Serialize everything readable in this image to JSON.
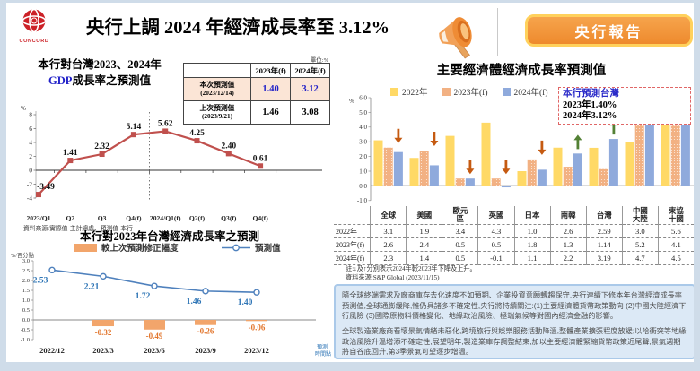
{
  "header": {
    "logo_text": "CONCORD",
    "title": "央行上調 2024 年經濟成長率至 3.12%",
    "badge_label": "央行報告",
    "badge_color": "#EE8A2D",
    "badge_border_color": "#FFD15C"
  },
  "gdp_panel": {
    "title_line1": "本行對台灣2023、2024年",
    "title_gdp": "GDP",
    "title_rest": "成長率之預測值",
    "unit_label": "單位:%",
    "table": {
      "col_headers": [
        "2023年(f)",
        "2024年(f)"
      ],
      "rows": [
        {
          "label": "本次預測值",
          "date": "(2023/12/14)",
          "v2023": "1.40",
          "v2024": "3.12"
        },
        {
          "label": "上次預測值",
          "date": "(2023/9/21)",
          "v2023": "1.46",
          "v2024": "3.08"
        }
      ]
    },
    "source": "資料來源:實際值-主計總處、預測值-本行"
  },
  "revision_panel": {
    "title": "本行對2023年台灣經濟成長率之預測"
  },
  "economies_panel": {
    "title": "主要經濟體經濟成長率預測值",
    "callout_line1": "本行預測台灣",
    "callout_line2": "2023年1.40%",
    "callout_line3": "2024年3.12%",
    "note": "註:↓及↑分別表示2024年較2023年下降及上升。",
    "source": "資料來源:S&P Global (2023/11/15)"
  },
  "summary_box": {
    "paragraph1": "隨全球終端需求及廠商庫存去化速度不如預期、企業投資意願轉趨保守,央行連續下修本年台灣經濟成長率預測值,全球通膨緩降,惟仍具諸多不確定性,央行將持續關注:(1)主要經濟體貨幣政策動向 (2)中國大陸經濟下行風險 (3)國際原物料價格變化、地緣政治風險、極端氣候等對國內經濟金融的影響。",
    "paragraph2": "全球製造業廠商看壞景氣情緒未惡化,跨境旅行與娛樂服務活動降溫,整體產業擴張程度放緩;以哈衝突等地緣政治風險升溫增添不確定性,展望明年,製造業庫存調整結束,加以主要經濟體緊縮貨幣政策近尾聲,景氣週期將自谷底回升,第3季景氣可望逐步增溫。"
  },
  "chart_data": [
    {
      "id": "gdp_line",
      "type": "line",
      "title": "本行對台灣2023、2024年GDP成長率之預測值",
      "ylabel": "%",
      "ylim": [
        -4,
        8
      ],
      "yticks": [
        8,
        6,
        4,
        2,
        0,
        -2,
        -4
      ],
      "categories": [
        "2023/Q1",
        "Q2",
        "Q3",
        "Q4(f)",
        "2024/Q1(f)",
        "Q2(f)",
        "Q3(f)",
        "Q4(f)"
      ],
      "values": [
        -3.49,
        1.41,
        2.32,
        5.14,
        5.62,
        4.25,
        2.4,
        0.61
      ],
      "line_color": "#c0504d",
      "divider_after_index": 3,
      "grid": false
    },
    {
      "id": "forecast_revision",
      "type": "bar+line",
      "title": "本行對2023年台灣經濟成長率之預測",
      "ylabel": "%/百分點",
      "xlabel": "預測時間點",
      "ylim": [
        -1.0,
        3.0
      ],
      "yticks": [
        3.0,
        2.5,
        2.0,
        1.5,
        1.0,
        0.5,
        0.0,
        -0.5,
        -1.0
      ],
      "categories": [
        "2022/12",
        "2023/3",
        "2023/6",
        "2023/9",
        "2023/12"
      ],
      "series": [
        {
          "name": "較上次預測修正幅度",
          "type": "bar",
          "color": "#f2a56b",
          "label_color": "#e2762d",
          "values": [
            null,
            -0.32,
            -0.49,
            -0.26,
            -0.06
          ]
        },
        {
          "name": "預測值",
          "type": "line",
          "color": "#4f81bd",
          "label_color": "#2e75b6",
          "values": [
            2.53,
            2.21,
            1.72,
            1.46,
            1.4
          ]
        }
      ],
      "legend_position": "top",
      "grid": false
    },
    {
      "id": "economies",
      "type": "bar",
      "title": "主要經濟體經濟成長率預測值",
      "ylabel": "%",
      "ylim": [
        -1.0,
        6.0
      ],
      "yticks": [
        6.0,
        5.0,
        4.0,
        3.0,
        2.0,
        1.0,
        0.0,
        -1.0
      ],
      "categories": [
        "全球",
        "美國",
        "歐元區",
        "英國",
        "日本",
        "南韓",
        "台灣",
        "中國大陸",
        "東協十國"
      ],
      "series": [
        {
          "name": "2022年",
          "color": "#ffd966",
          "values": [
            3.1,
            1.9,
            3.4,
            4.3,
            1.0,
            2.6,
            2.59,
            3.0,
            5.6
          ]
        },
        {
          "name": "2023年(f)",
          "color": "#f2b183",
          "values": [
            2.6,
            2.4,
            0.5,
            0.5,
            1.8,
            1.3,
            1.14,
            5.2,
            4.1
          ]
        },
        {
          "name": "2024年(f)",
          "color": "#8faadc",
          "values": [
            2.3,
            1.4,
            0.5,
            -0.1,
            1.1,
            2.2,
            3.19,
            4.7,
            4.5
          ]
        }
      ],
      "arrows": [
        "down",
        "down",
        "down",
        "down",
        "down",
        "up",
        "up",
        "down",
        "up"
      ],
      "arrow_colors": {
        "down": "#c55a11",
        "up": "#538135"
      },
      "legend_position": "top",
      "grid": false
    },
    {
      "id": "economies_table",
      "type": "table",
      "columns": [
        "",
        "全球",
        "美國",
        "歐元\n區",
        "英國",
        "日本",
        "南韓",
        "台灣",
        "中國\n大陸",
        "東協\n十國"
      ],
      "rows": [
        [
          "2022年",
          "3.1",
          "1.9",
          "3.4",
          "4.3",
          "1.0",
          "2.6",
          "2.59",
          "3.0",
          "5.6"
        ],
        [
          "2023年(f)",
          "2.6",
          "2.4",
          "0.5",
          "0.5",
          "1.8",
          "1.3",
          "1.14",
          "5.2",
          "4.1"
        ],
        [
          "2024年(f)",
          "2.3",
          "1.4",
          "0.5",
          "-0.1",
          "1.1",
          "2.2",
          "3.19",
          "4.7",
          "4.5"
        ]
      ]
    }
  ]
}
